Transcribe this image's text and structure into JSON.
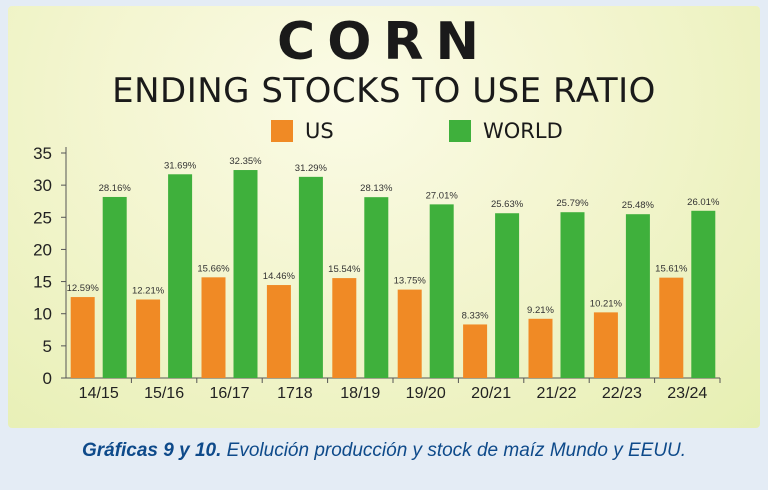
{
  "chart_data": {
    "type": "bar",
    "title": "CORN",
    "subtitle": "ENDING STOCKS TO USE RATIO",
    "categories": [
      "14/15",
      "15/16",
      "16/17",
      "1718",
      "18/19",
      "19/20",
      "20/21",
      "21/22",
      "22/23",
      "23/24"
    ],
    "series": [
      {
        "name": "US",
        "color": "#f08a25",
        "values": [
          12.59,
          12.21,
          15.66,
          14.46,
          15.54,
          13.75,
          8.33,
          9.21,
          10.21,
          15.61
        ],
        "labels": [
          "12.59%",
          "12.21%",
          "15.66%",
          "14.46%",
          "15.54%",
          "13.75%",
          "8.33%",
          "9.21%",
          "10.21%",
          "15.61%"
        ]
      },
      {
        "name": "WORLD",
        "color": "#3fb03c",
        "values": [
          28.16,
          31.69,
          32.35,
          31.29,
          28.13,
          27.01,
          25.63,
          25.79,
          25.48,
          26.01
        ],
        "labels": [
          "28.16%",
          "31.69%",
          "32.35%",
          "31.29%",
          "28.13%",
          "27.01%",
          "25.63%",
          "25.79%",
          "25.48%",
          "26.01%"
        ]
      }
    ],
    "ylim": [
      0,
      35
    ],
    "yticks": [
      0,
      5,
      10,
      15,
      20,
      25,
      30,
      35
    ],
    "grid": false,
    "legend": "top"
  },
  "caption": {
    "bold": "Gráficas 9 y 10.",
    "text": " Evolución producción y stock de maíz Mundo y EEUU."
  }
}
